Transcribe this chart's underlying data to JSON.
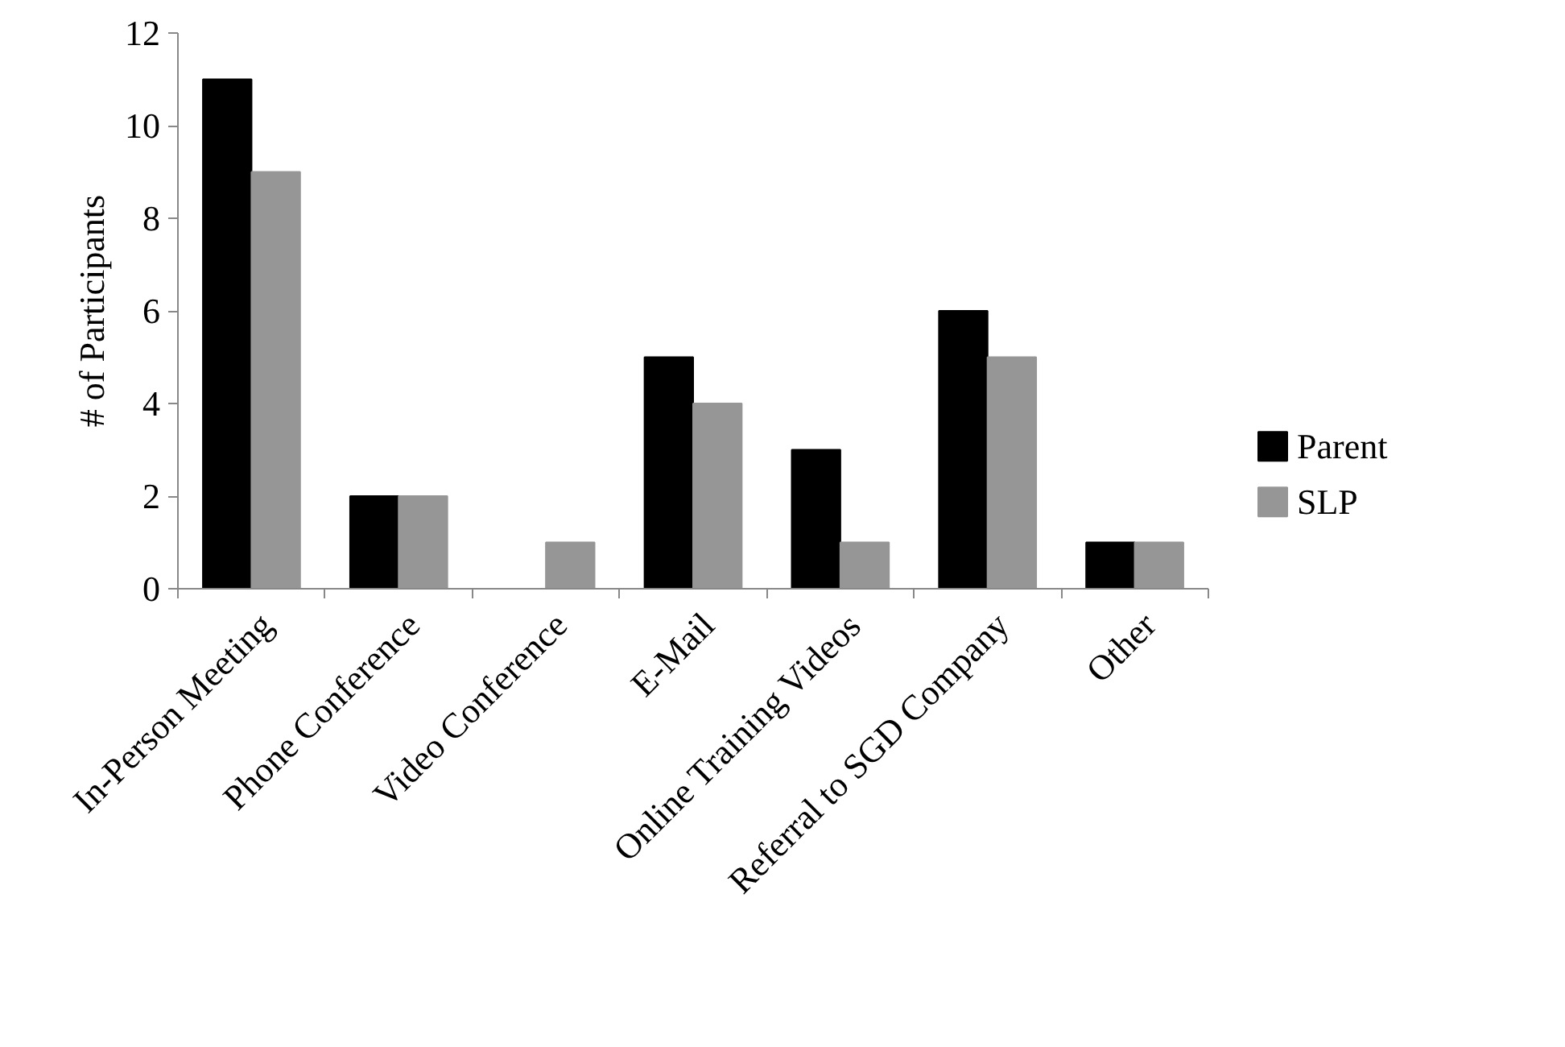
{
  "chart_data": {
    "type": "bar",
    "ylabel": "# of Participants",
    "categories": [
      "In-Person Meeting",
      "Phone Conference",
      "Video Conference",
      "E-Mail",
      "Online Training Videos",
      "Referral to SGD Company",
      "Other"
    ],
    "series": [
      {
        "name": "Parent",
        "color": "#000000",
        "values": [
          11,
          2,
          0,
          5,
          3,
          6,
          1
        ]
      },
      {
        "name": "SLP",
        "color": "#969696",
        "values": [
          9,
          2,
          1,
          4,
          1,
          5,
          1
        ]
      }
    ],
    "ylim": [
      0,
      12
    ],
    "yticks": [
      0,
      2,
      4,
      6,
      8,
      10,
      12
    ],
    "grid": false,
    "legend": "right"
  }
}
